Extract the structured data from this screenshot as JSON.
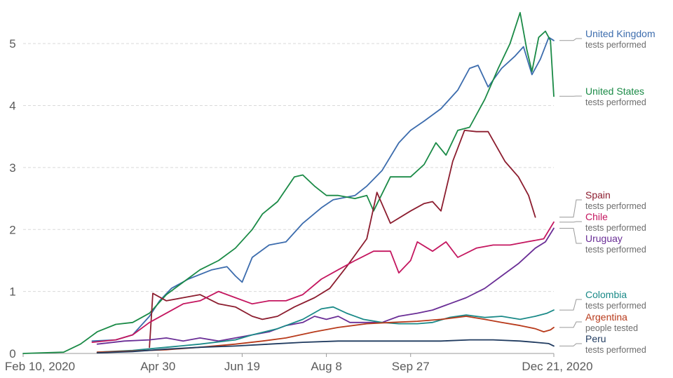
{
  "chart_data": {
    "type": "line",
    "title": "",
    "xlabel": "",
    "ylabel": "",
    "xlim": [
      "2020-02-10",
      "2020-12-21"
    ],
    "ylim": [
      0,
      5.5
    ],
    "grid": true,
    "legend": "right",
    "x_ticks": [
      "Feb 10, 2020",
      "Apr 30",
      "Jun 19",
      "Aug 8",
      "Sep 27",
      "Dec 21, 2020"
    ],
    "x_tick_dates": [
      "2020-02-10",
      "2020-04-30",
      "2020-06-19",
      "2020-08-08",
      "2020-09-27",
      "2020-12-21"
    ],
    "y_ticks": [
      "0",
      "1",
      "2",
      "3",
      "4",
      "5"
    ],
    "y_tick_values": [
      0,
      1,
      2,
      3,
      4,
      5
    ],
    "series": [
      {
        "name": "United Kingdom",
        "sub": "tests performed",
        "color": "#3c6cad",
        "points": [
          [
            "2020-03-22",
            0.2
          ],
          [
            "2020-04-05",
            0.22
          ],
          [
            "2020-04-15",
            0.3
          ],
          [
            "2020-04-25",
            0.6
          ],
          [
            "2020-05-01",
            0.85
          ],
          [
            "2020-05-08",
            1.05
          ],
          [
            "2020-05-18",
            1.2
          ],
          [
            "2020-06-01",
            1.35
          ],
          [
            "2020-06-10",
            1.4
          ],
          [
            "2020-06-15",
            1.25
          ],
          [
            "2020-06-19",
            1.15
          ],
          [
            "2020-06-25",
            1.55
          ],
          [
            "2020-07-05",
            1.75
          ],
          [
            "2020-07-15",
            1.8
          ],
          [
            "2020-07-25",
            2.1
          ],
          [
            "2020-08-05",
            2.35
          ],
          [
            "2020-08-12",
            2.48
          ],
          [
            "2020-08-25",
            2.55
          ],
          [
            "2020-09-01",
            2.7
          ],
          [
            "2020-09-10",
            2.95
          ],
          [
            "2020-09-20",
            3.4
          ],
          [
            "2020-09-27",
            3.6
          ],
          [
            "2020-10-05",
            3.75
          ],
          [
            "2020-10-15",
            3.95
          ],
          [
            "2020-10-25",
            4.25
          ],
          [
            "2020-11-01",
            4.6
          ],
          [
            "2020-11-06",
            4.65
          ],
          [
            "2020-11-12",
            4.3
          ],
          [
            "2020-11-20",
            4.6
          ],
          [
            "2020-11-28",
            4.8
          ],
          [
            "2020-12-03",
            4.95
          ],
          [
            "2020-12-08",
            4.5
          ],
          [
            "2020-12-13",
            4.75
          ],
          [
            "2020-12-18",
            5.1
          ],
          [
            "2020-12-21",
            5.05
          ]
        ]
      },
      {
        "name": "United States",
        "sub": "tests performed",
        "color": "#1a8a46",
        "points": [
          [
            "2020-02-10",
            0
          ],
          [
            "2020-03-05",
            0.02
          ],
          [
            "2020-03-15",
            0.15
          ],
          [
            "2020-03-25",
            0.35
          ],
          [
            "2020-04-05",
            0.47
          ],
          [
            "2020-04-15",
            0.5
          ],
          [
            "2020-04-25",
            0.65
          ],
          [
            "2020-05-05",
            0.95
          ],
          [
            "2020-05-15",
            1.15
          ],
          [
            "2020-05-25",
            1.35
          ],
          [
            "2020-06-05",
            1.5
          ],
          [
            "2020-06-15",
            1.7
          ],
          [
            "2020-06-25",
            2.0
          ],
          [
            "2020-07-01",
            2.25
          ],
          [
            "2020-07-10",
            2.45
          ],
          [
            "2020-07-20",
            2.85
          ],
          [
            "2020-07-25",
            2.88
          ],
          [
            "2020-08-01",
            2.7
          ],
          [
            "2020-08-08",
            2.55
          ],
          [
            "2020-08-15",
            2.55
          ],
          [
            "2020-08-25",
            2.5
          ],
          [
            "2020-09-01",
            2.55
          ],
          [
            "2020-09-05",
            2.3
          ],
          [
            "2020-09-15",
            2.85
          ],
          [
            "2020-09-27",
            2.85
          ],
          [
            "2020-10-05",
            3.05
          ],
          [
            "2020-10-12",
            3.4
          ],
          [
            "2020-10-18",
            3.2
          ],
          [
            "2020-10-25",
            3.6
          ],
          [
            "2020-11-01",
            3.65
          ],
          [
            "2020-11-10",
            4.1
          ],
          [
            "2020-11-18",
            4.6
          ],
          [
            "2020-11-25",
            5.0
          ],
          [
            "2020-12-01",
            5.5
          ],
          [
            "2020-12-05",
            4.9
          ],
          [
            "2020-12-08",
            4.55
          ],
          [
            "2020-12-12",
            5.1
          ],
          [
            "2020-12-16",
            5.2
          ],
          [
            "2020-12-19",
            5.05
          ],
          [
            "2020-12-21",
            4.15
          ]
        ]
      },
      {
        "name": "Spain",
        "sub": "tests performed",
        "color": "#8c1d2f",
        "points": [
          [
            "2020-04-25",
            0.1
          ],
          [
            "2020-04-27",
            0.97
          ],
          [
            "2020-05-05",
            0.85
          ],
          [
            "2020-05-15",
            0.9
          ],
          [
            "2020-05-25",
            0.95
          ],
          [
            "2020-06-05",
            0.8
          ],
          [
            "2020-06-15",
            0.75
          ],
          [
            "2020-06-25",
            0.6
          ],
          [
            "2020-07-01",
            0.55
          ],
          [
            "2020-07-10",
            0.6
          ],
          [
            "2020-07-20",
            0.75
          ],
          [
            "2020-08-01",
            0.9
          ],
          [
            "2020-08-10",
            1.05
          ],
          [
            "2020-08-20",
            1.4
          ],
          [
            "2020-09-01",
            1.85
          ],
          [
            "2020-09-07",
            2.6
          ],
          [
            "2020-09-15",
            2.1
          ],
          [
            "2020-09-27",
            2.3
          ],
          [
            "2020-10-05",
            2.42
          ],
          [
            "2020-10-10",
            2.45
          ],
          [
            "2020-10-15",
            2.3
          ],
          [
            "2020-10-22",
            3.1
          ],
          [
            "2020-10-29",
            3.6
          ],
          [
            "2020-11-05",
            3.58
          ],
          [
            "2020-11-12",
            3.58
          ],
          [
            "2020-11-22",
            3.1
          ],
          [
            "2020-11-30",
            2.85
          ],
          [
            "2020-12-06",
            2.55
          ],
          [
            "2020-12-10",
            2.2
          ]
        ]
      },
      {
        "name": "Chile",
        "sub": "tests performed",
        "color": "#c4165f",
        "points": [
          [
            "2020-03-22",
            0.18
          ],
          [
            "2020-04-05",
            0.22
          ],
          [
            "2020-04-15",
            0.3
          ],
          [
            "2020-04-25",
            0.5
          ],
          [
            "2020-05-05",
            0.65
          ],
          [
            "2020-05-15",
            0.8
          ],
          [
            "2020-05-25",
            0.85
          ],
          [
            "2020-06-05",
            1.0
          ],
          [
            "2020-06-15",
            0.9
          ],
          [
            "2020-06-25",
            0.8
          ],
          [
            "2020-07-05",
            0.85
          ],
          [
            "2020-07-15",
            0.85
          ],
          [
            "2020-07-25",
            0.95
          ],
          [
            "2020-08-05",
            1.2
          ],
          [
            "2020-08-15",
            1.35
          ],
          [
            "2020-08-25",
            1.5
          ],
          [
            "2020-09-05",
            1.65
          ],
          [
            "2020-09-15",
            1.65
          ],
          [
            "2020-09-20",
            1.3
          ],
          [
            "2020-09-27",
            1.5
          ],
          [
            "2020-10-01",
            1.8
          ],
          [
            "2020-10-10",
            1.65
          ],
          [
            "2020-10-18",
            1.8
          ],
          [
            "2020-10-25",
            1.55
          ],
          [
            "2020-11-05",
            1.7
          ],
          [
            "2020-11-15",
            1.75
          ],
          [
            "2020-11-25",
            1.75
          ],
          [
            "2020-12-05",
            1.8
          ],
          [
            "2020-12-15",
            1.85
          ],
          [
            "2020-12-21",
            2.12
          ]
        ]
      },
      {
        "name": "Uruguay",
        "sub": "tests performed",
        "color": "#6a2e96",
        "points": [
          [
            "2020-03-25",
            0.15
          ],
          [
            "2020-04-10",
            0.2
          ],
          [
            "2020-04-25",
            0.22
          ],
          [
            "2020-05-05",
            0.25
          ],
          [
            "2020-05-15",
            0.2
          ],
          [
            "2020-05-25",
            0.25
          ],
          [
            "2020-06-05",
            0.2
          ],
          [
            "2020-06-15",
            0.25
          ],
          [
            "2020-06-25",
            0.3
          ],
          [
            "2020-07-05",
            0.35
          ],
          [
            "2020-07-15",
            0.45
          ],
          [
            "2020-07-25",
            0.5
          ],
          [
            "2020-08-01",
            0.6
          ],
          [
            "2020-08-08",
            0.55
          ],
          [
            "2020-08-15",
            0.6
          ],
          [
            "2020-08-22",
            0.5
          ],
          [
            "2020-09-01",
            0.5
          ],
          [
            "2020-09-10",
            0.5
          ],
          [
            "2020-09-20",
            0.6
          ],
          [
            "2020-10-01",
            0.65
          ],
          [
            "2020-10-10",
            0.7
          ],
          [
            "2020-10-20",
            0.8
          ],
          [
            "2020-10-30",
            0.9
          ],
          [
            "2020-11-10",
            1.05
          ],
          [
            "2020-11-20",
            1.25
          ],
          [
            "2020-11-30",
            1.45
          ],
          [
            "2020-12-10",
            1.7
          ],
          [
            "2020-12-16",
            1.8
          ],
          [
            "2020-12-21",
            2.02
          ]
        ]
      },
      {
        "name": "Colombia",
        "sub": "tests performed",
        "color": "#1b8a88",
        "points": [
          [
            "2020-03-25",
            0.02
          ],
          [
            "2020-04-15",
            0.05
          ],
          [
            "2020-05-05",
            0.1
          ],
          [
            "2020-05-25",
            0.15
          ],
          [
            "2020-06-15",
            0.22
          ],
          [
            "2020-06-25",
            0.3
          ],
          [
            "2020-07-10",
            0.4
          ],
          [
            "2020-07-25",
            0.55
          ],
          [
            "2020-08-05",
            0.72
          ],
          [
            "2020-08-12",
            0.75
          ],
          [
            "2020-08-20",
            0.65
          ],
          [
            "2020-08-30",
            0.55
          ],
          [
            "2020-09-10",
            0.5
          ],
          [
            "2020-09-20",
            0.48
          ],
          [
            "2020-10-01",
            0.48
          ],
          [
            "2020-10-10",
            0.5
          ],
          [
            "2020-10-20",
            0.58
          ],
          [
            "2020-10-30",
            0.62
          ],
          [
            "2020-11-10",
            0.58
          ],
          [
            "2020-11-20",
            0.6
          ],
          [
            "2020-12-01",
            0.55
          ],
          [
            "2020-12-10",
            0.6
          ],
          [
            "2020-12-17",
            0.65
          ],
          [
            "2020-12-21",
            0.7
          ]
        ]
      },
      {
        "name": "Argentina",
        "sub": "people tested",
        "color": "#b83a1b",
        "points": [
          [
            "2020-03-25",
            0.02
          ],
          [
            "2020-04-15",
            0.04
          ],
          [
            "2020-05-05",
            0.06
          ],
          [
            "2020-05-25",
            0.1
          ],
          [
            "2020-06-15",
            0.15
          ],
          [
            "2020-07-01",
            0.2
          ],
          [
            "2020-07-15",
            0.25
          ],
          [
            "2020-08-01",
            0.35
          ],
          [
            "2020-08-15",
            0.42
          ],
          [
            "2020-09-01",
            0.48
          ],
          [
            "2020-09-15",
            0.5
          ],
          [
            "2020-10-01",
            0.52
          ],
          [
            "2020-10-15",
            0.55
          ],
          [
            "2020-10-30",
            0.6
          ],
          [
            "2020-11-10",
            0.55
          ],
          [
            "2020-11-20",
            0.5
          ],
          [
            "2020-12-01",
            0.45
          ],
          [
            "2020-12-10",
            0.4
          ],
          [
            "2020-12-15",
            0.35
          ],
          [
            "2020-12-19",
            0.38
          ],
          [
            "2020-12-21",
            0.42
          ]
        ]
      },
      {
        "name": "Peru",
        "sub": "tests performed",
        "color": "#1f3a5f",
        "points": [
          [
            "2020-03-25",
            0.01
          ],
          [
            "2020-04-15",
            0.03
          ],
          [
            "2020-05-05",
            0.07
          ],
          [
            "2020-05-25",
            0.1
          ],
          [
            "2020-06-15",
            0.12
          ],
          [
            "2020-07-05",
            0.15
          ],
          [
            "2020-07-25",
            0.18
          ],
          [
            "2020-08-15",
            0.2
          ],
          [
            "2020-09-05",
            0.2
          ],
          [
            "2020-09-27",
            0.2
          ],
          [
            "2020-10-15",
            0.2
          ],
          [
            "2020-11-01",
            0.22
          ],
          [
            "2020-11-15",
            0.22
          ],
          [
            "2020-12-01",
            0.2
          ],
          [
            "2020-12-10",
            0.18
          ],
          [
            "2020-12-18",
            0.16
          ],
          [
            "2020-12-21",
            0.12
          ]
        ]
      }
    ]
  }
}
